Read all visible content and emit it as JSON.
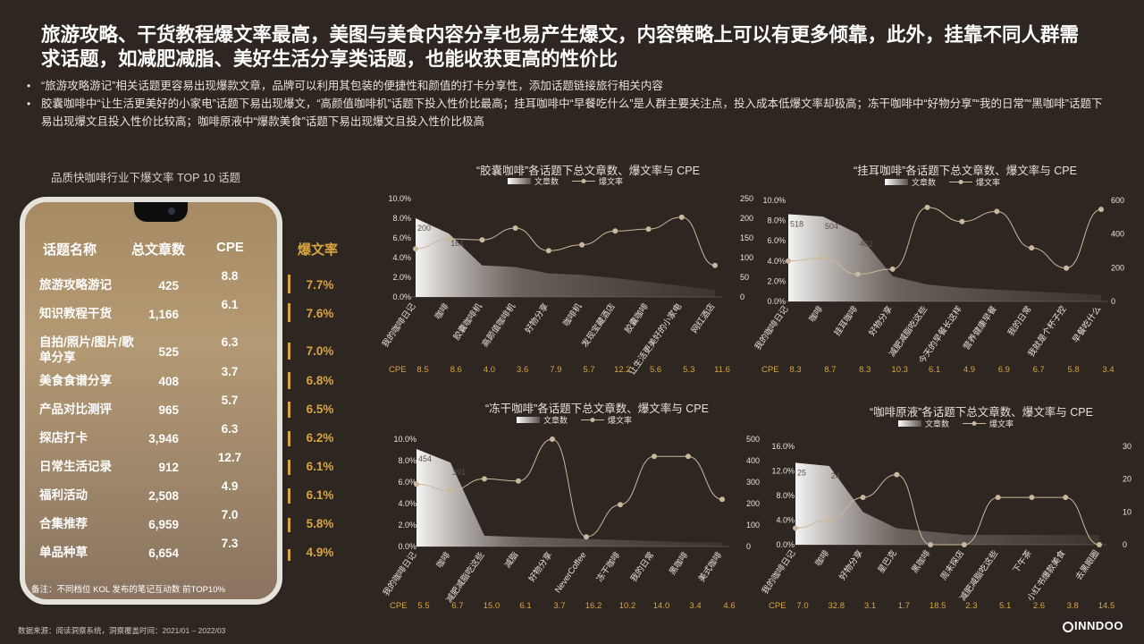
{
  "headline": "旅游攻略、干货教程爆文率最高，美图与美食内容分享也易产生爆文，内容策略上可以有更多倾靠，此外，挂靠不同人群需求话题，如减肥减脂、美好生活分享类话题，也能收获更高的性价比",
  "bullets": [
    "“旅游攻略游记”相关话题更容易出现爆款文章，品牌可以利用其包装的便捷性和颜值的打卡分享性，添加话题链接旅行相关内容",
    "胶囊咖啡中“让生活更美好的小家电”话题下易出现爆文，“高颜值咖啡机”话题下投入性价比最高；挂耳咖啡中“早餐吃什么”是人群主要关注点，投入成本低爆文率却极高；冻干咖啡中“好物分享”“我的日常”“黑咖啡”话题下易出现爆文且投入性价比较高；咖啡原液中“爆款美食”话题下易出现爆文且投入性价比极高"
  ],
  "left_title": "品质快咖啡行业下爆文率 TOP 10 话题",
  "ranking": {
    "headers": {
      "topic": "话题名称",
      "count": "总文章数",
      "cpe": "CPE",
      "rate": "爆文率"
    },
    "rows": [
      {
        "topic": "旅游攻略游记",
        "count": "425",
        "cpe": "8.8",
        "rate": "7.7%",
        "rate_value": 7.7
      },
      {
        "topic": "知识教程干货",
        "count": "1,166",
        "cpe": "6.1",
        "rate": "7.6%",
        "rate_value": 7.6
      },
      {
        "topic": "自拍/照片/图片/歌单分享",
        "count": "525",
        "cpe": "6.3",
        "rate": "7.0%",
        "rate_value": 7.0
      },
      {
        "topic": "美食食谱分享",
        "count": "408",
        "cpe": "3.7",
        "rate": "6.8%",
        "rate_value": 6.8
      },
      {
        "topic": "产品对比测评",
        "count": "965",
        "cpe": "5.7",
        "rate": "6.5%",
        "rate_value": 6.5
      },
      {
        "topic": "探店打卡",
        "count": "3,946",
        "cpe": "6.3",
        "rate": "6.2%",
        "rate_value": 6.2
      },
      {
        "topic": "日常生活记录",
        "count": "912",
        "cpe": "12.7",
        "rate": "6.1%",
        "rate_value": 6.1
      },
      {
        "topic": "福利活动",
        "count": "2,508",
        "cpe": "4.9",
        "rate": "6.1%",
        "rate_value": 6.1
      },
      {
        "topic": "合集推荐",
        "count": "6,959",
        "cpe": "7.0",
        "rate": "5.8%",
        "rate_value": 5.8
      },
      {
        "topic": "单品种草",
        "count": "6,654",
        "cpe": "7.3",
        "rate": "4.9%",
        "rate_value": 4.9
      }
    ],
    "note": "备注：不同档位 KOL 发布的笔记互动数 前TOP10%"
  },
  "footer": "数据来源：阅读洞察系统，洞察覆盖时间：2021/01 – 2022/03",
  "logo": "INNDOO",
  "colors": {
    "background": "#2e2621",
    "accent": "#d9a441",
    "line": "#c9b89c"
  },
  "chart_data": [
    {
      "type": "area+line",
      "title": "“胶囊咖啡”各话题下总文章数、爆文率与 CPE",
      "legend": [
        "文章数",
        "爆文率"
      ],
      "categories": [
        "我的咖啡日记",
        "咖啡",
        "胶囊咖啡机",
        "高颜值咖啡机",
        "好物分享",
        "咖啡机",
        "发现宝藏酒店",
        "胶囊咖啡",
        "让生活更美好的小家电",
        "网红酒店"
      ],
      "articles": [
        200,
        161,
        80,
        76,
        60,
        56,
        48,
        38,
        28,
        18
      ],
      "articles_labels": [
        "200",
        "161"
      ],
      "rate": [
        4.9,
        5.9,
        5.8,
        7.0,
        4.7,
        5.3,
        6.7,
        6.9,
        8.1,
        3.2
      ],
      "cpe": [
        "8.5",
        "8.6",
        "4.0",
        "3.6",
        "7.9",
        "5.7",
        "12.2",
        "5.6",
        "5.3",
        "11.6"
      ],
      "cpe_label": "CPE",
      "y_left": [
        "0.0%",
        "2.0%",
        "4.0%",
        "6.0%",
        "8.0%",
        "10.0%"
      ],
      "y_right": [
        "0",
        "50",
        "100",
        "150",
        "200",
        "250"
      ],
      "ylim_left": [
        0,
        10
      ],
      "ylim_right": [
        0,
        250
      ]
    },
    {
      "type": "area+line",
      "title": "“挂耳咖啡”各话题下总文章数、爆文率与 CPE",
      "legend": [
        "文章数",
        "爆文率"
      ],
      "categories": [
        "我的咖啡日记",
        "咖啡",
        "挂耳咖啡",
        "好物分享",
        "减肥减脂吃这些",
        "今天的早餐长这样",
        "营养健康早餐",
        "我的日常",
        "我就是个杯子控",
        "早餐吃什么"
      ],
      "articles": [
        518,
        504,
        402,
        150,
        100,
        80,
        70,
        60,
        50,
        40
      ],
      "articles_labels": [
        "518",
        "504",
        "402"
      ],
      "rate": [
        4.0,
        4.3,
        2.7,
        3.2,
        9.3,
        7.9,
        8.9,
        5.3,
        3.3,
        9.1
      ],
      "cpe": [
        "8.3",
        "8.7",
        "8.3",
        "10.3",
        "6.1",
        "4.9",
        "6.9",
        "6.7",
        "5.8",
        "3.4"
      ],
      "cpe_label": "CPE",
      "y_left": [
        "0.0%",
        "2.0%",
        "4.0%",
        "6.0%",
        "8.0%",
        "10.0%"
      ],
      "y_right": [
        "0",
        "200",
        "400",
        "600"
      ],
      "ylim_left": [
        0,
        10
      ],
      "ylim_right": [
        0,
        600
      ]
    },
    {
      "type": "area+line",
      "title": "“冻干咖啡”各话题下总文章数、爆文率与 CPE",
      "legend": [
        "文章数",
        "爆文率"
      ],
      "categories": [
        "我的咖啡日记",
        "咖啡",
        "减肥减脂吃这些",
        "减脂",
        "好物分享",
        "NeverCoffee",
        "冻干咖啡",
        "我的日常",
        "黑咖啡",
        "美式咖啡"
      ],
      "articles": [
        454,
        391,
        50,
        45,
        40,
        35,
        30,
        25,
        20,
        18
      ],
      "articles_labels": [
        "454",
        "391"
      ],
      "rate": [
        5.8,
        5.2,
        6.3,
        6.1,
        10.0,
        0.9,
        3.9,
        8.4,
        8.4,
        4.4
      ],
      "cpe": [
        "5.5",
        "6.7",
        "15.0",
        "6.1",
        "3.7",
        "16.2",
        "10.2",
        "14.0",
        "3.4",
        "4.6"
      ],
      "cpe_label": "CPE",
      "y_left": [
        "0.0%",
        "2.0%",
        "4.0%",
        "6.0%",
        "8.0%",
        "10.0%"
      ],
      "y_right": [
        "0",
        "100",
        "200",
        "300",
        "400",
        "500"
      ],
      "ylim_left": [
        0,
        10
      ],
      "ylim_right": [
        0,
        500
      ]
    },
    {
      "type": "area+line",
      "title": "“咖啡原液”各话题下总文章数、爆文率与 CPE",
      "legend": [
        "文章数",
        "爆文率"
      ],
      "categories": [
        "我的咖啡日记",
        "咖啡",
        "好物分享",
        "星巴克",
        "黑咖啡",
        "周末探店",
        "减肥减脂吃这些",
        "下午茶",
        "小红书爆款美食",
        "去黑眼圈"
      ],
      "articles": [
        25,
        24,
        10,
        5,
        4,
        3,
        3,
        3,
        3,
        3
      ],
      "articles_labels": [
        "25",
        "24"
      ],
      "rate": [
        2.7,
        4.0,
        7.7,
        11.4,
        0.0,
        0.0,
        7.7,
        7.7,
        7.7,
        0.0
      ],
      "cpe": [
        "7.0",
        "32.8",
        "3.1",
        "1.7",
        "18.5",
        "2.3",
        "5.1",
        "2.6",
        "3.8",
        "14.5"
      ],
      "cpe_label": "CPE",
      "y_left": [
        "0.0%",
        "4.0%",
        "8.0%",
        "12.0%",
        "16.0%"
      ],
      "y_right": [
        "0",
        "10",
        "20",
        "30"
      ],
      "ylim_left": [
        0,
        16
      ],
      "ylim_right": [
        0,
        30
      ]
    }
  ]
}
